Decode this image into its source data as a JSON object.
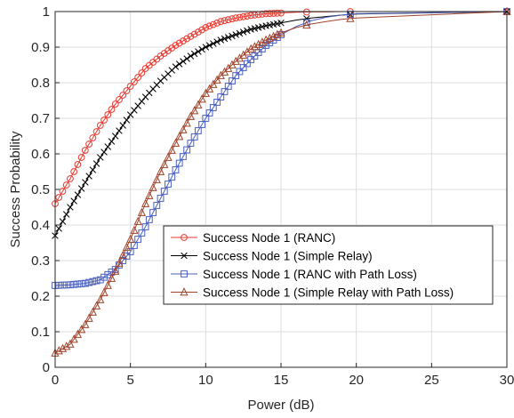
{
  "chart_data": {
    "type": "line",
    "title": "",
    "xlabel": "Power (dB)",
    "ylabel": "Success Probability",
    "xlim": [
      0,
      30
    ],
    "ylim": [
      0,
      1
    ],
    "xticks": [
      0,
      5,
      10,
      15,
      20,
      25,
      30
    ],
    "yticks": [
      0,
      0.1,
      0.2,
      0.3,
      0.4,
      0.5,
      0.6,
      0.7,
      0.8,
      0.9,
      1
    ],
    "grid": true,
    "legend_position": "center-right",
    "series": [
      {
        "name": "Success Node 1 (RANC)",
        "color": "#e8392f",
        "marker": "circle",
        "x": [
          0,
          1,
          2,
          3,
          4,
          5,
          6,
          7,
          8,
          9,
          10,
          11,
          12,
          13,
          14,
          15,
          16,
          17,
          18,
          19,
          20,
          30
        ],
        "y": [
          0.46,
          0.53,
          0.61,
          0.68,
          0.74,
          0.79,
          0.84,
          0.875,
          0.905,
          0.93,
          0.955,
          0.972,
          0.982,
          0.989,
          0.994,
          0.996,
          0.998,
          0.999,
          0.999,
          1.0,
          1.0,
          1.0
        ]
      },
      {
        "name": "Success Node 1 (Simple Relay)",
        "color": "#000000",
        "marker": "x",
        "x": [
          0,
          1,
          2,
          3,
          4,
          5,
          6,
          7,
          8,
          9,
          10,
          11,
          12,
          13,
          14,
          15,
          16,
          17,
          18,
          19,
          20,
          30
        ],
        "y": [
          0.37,
          0.45,
          0.52,
          0.59,
          0.65,
          0.71,
          0.76,
          0.805,
          0.845,
          0.875,
          0.9,
          0.92,
          0.935,
          0.95,
          0.96,
          0.968,
          0.976,
          0.982,
          0.986,
          0.99,
          0.993,
          1.0
        ]
      },
      {
        "name": "Success Node 1 (RANC with Path Loss)",
        "color": "#4a5fc1",
        "marker": "square",
        "x": [
          0,
          1,
          2,
          3,
          4,
          5,
          6,
          7,
          8,
          9,
          10,
          11,
          12,
          13,
          14,
          15,
          16,
          17,
          18,
          19,
          20,
          30
        ],
        "y": [
          0.23,
          0.232,
          0.236,
          0.246,
          0.275,
          0.325,
          0.395,
          0.475,
          0.555,
          0.63,
          0.7,
          0.76,
          0.82,
          0.865,
          0.905,
          0.935,
          0.958,
          0.974,
          0.984,
          0.99,
          0.994,
          1.0
        ]
      },
      {
        "name": "Success Node 1 (Simple Relay with Path Loss)",
        "color": "#a0432b",
        "marker": "triangle",
        "x": [
          0,
          1,
          2,
          3,
          4,
          5,
          6,
          7,
          8,
          9,
          10,
          11,
          12,
          13,
          14,
          15,
          16,
          17,
          18,
          19,
          20,
          30
        ],
        "y": [
          0.04,
          0.065,
          0.12,
          0.19,
          0.27,
          0.36,
          0.46,
          0.55,
          0.63,
          0.705,
          0.77,
          0.82,
          0.86,
          0.895,
          0.92,
          0.94,
          0.955,
          0.965,
          0.972,
          0.978,
          0.982,
          1.0
        ]
      }
    ]
  }
}
